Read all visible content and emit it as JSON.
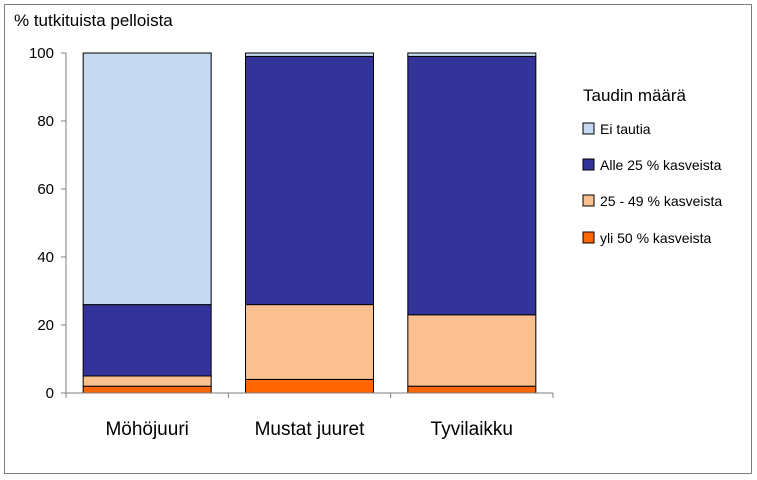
{
  "chart_data": {
    "type": "bar",
    "stacked": true,
    "title": "",
    "ylabel": "% tutkituista pelloista",
    "xlabel": "",
    "ylim": [
      0,
      100
    ],
    "yticks": [
      0,
      20,
      40,
      60,
      80,
      100
    ],
    "grid": false,
    "legend_title": "Taudin määrä",
    "legend_position": "right",
    "categories": [
      "Möhöjuuri",
      "Mustat juuret",
      "Tyvilaikku"
    ],
    "series": [
      {
        "name": "yli 50 % kasveista",
        "color": "#FF6600",
        "values": [
          2,
          4,
          2
        ]
      },
      {
        "name": "25 - 49 % kasveista",
        "color": "#FAC090",
        "values": [
          3,
          22,
          21
        ]
      },
      {
        "name": "Alle 25 % kasveista",
        "color": "#333399",
        "values": [
          21,
          73,
          76
        ]
      },
      {
        "name": "Ei tautia",
        "color": "#C6D9F0",
        "values": [
          74,
          1,
          1
        ]
      }
    ],
    "legend_order": [
      3,
      2,
      1,
      0
    ]
  }
}
